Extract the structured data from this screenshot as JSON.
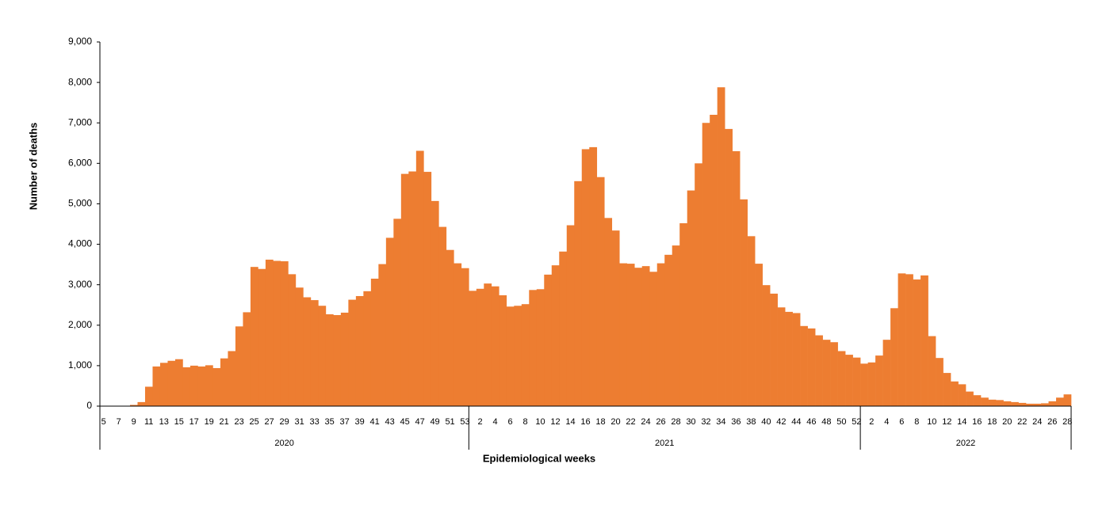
{
  "chart_data": {
    "type": "bar",
    "y_label": "Number of deaths",
    "x_label": "Epidemiological weeks",
    "color": "#ed7d31",
    "ylim": [
      0,
      9000
    ],
    "yticks": [
      0,
      {
        "value": 1000,
        "label": "1,000"
      },
      {
        "value": 2000,
        "label": "2,000"
      },
      {
        "value": 3000,
        "label": "3,000"
      },
      {
        "value": 4000,
        "label": "4,000"
      },
      {
        "value": 5000,
        "label": "5,000"
      },
      {
        "value": 6000,
        "label": "6,000"
      },
      {
        "value": 7000,
        "label": "7,000"
      },
      {
        "value": 8000,
        "label": "8,000"
      },
      {
        "value": 9000,
        "label": "9,000"
      }
    ],
    "groups": [
      {
        "name": "2020",
        "categories": [
          "5",
          null,
          "7",
          null,
          "9",
          null,
          "11",
          null,
          "13",
          null,
          "15",
          null,
          "17",
          null,
          "19",
          null,
          "21",
          null,
          "23",
          null,
          "25",
          null,
          "27",
          null,
          "29",
          null,
          "31",
          null,
          "33",
          null,
          "35",
          null,
          "37",
          null,
          "39",
          null,
          "41",
          null,
          "43",
          null,
          "45",
          null,
          "47",
          null,
          "49",
          null,
          "51",
          null,
          "53"
        ],
        "values": [
          0,
          0,
          0,
          0,
          30,
          100,
          480,
          980,
          1070,
          1120,
          1160,
          960,
          1000,
          980,
          1010,
          940,
          1180,
          1360,
          1970,
          2320,
          3440,
          3390,
          3620,
          3590,
          3580,
          3260,
          2930,
          2690,
          2620,
          2480,
          2270,
          2250,
          2310,
          2630,
          2720,
          2840,
          3150,
          3510,
          4160,
          4630,
          5740,
          5800,
          6310,
          5790,
          5070,
          4430,
          3860,
          3530,
          3410
        ]
      },
      {
        "name": "2021",
        "categories": [
          null,
          "2",
          null,
          "4",
          null,
          "6",
          null,
          "8",
          null,
          "10",
          null,
          "12",
          null,
          "14",
          null,
          "16",
          null,
          "18",
          null,
          "20",
          null,
          "22",
          null,
          "24",
          null,
          "26",
          null,
          "28",
          null,
          "30",
          null,
          "32",
          null,
          "34",
          null,
          "36",
          null,
          "38",
          null,
          "40",
          null,
          "42",
          null,
          "44",
          null,
          "46",
          null,
          "48",
          null,
          "50",
          null,
          "52"
        ],
        "values": [
          2850,
          2900,
          3030,
          2960,
          2740,
          2460,
          2480,
          2520,
          2870,
          2890,
          3250,
          3480,
          3820,
          4470,
          5560,
          6350,
          6400,
          5660,
          4650,
          4340,
          3530,
          3520,
          3420,
          3460,
          3320,
          3530,
          3740,
          3970,
          4520,
          5330,
          6000,
          7000,
          7200,
          7880,
          6850,
          6300,
          5110,
          4200,
          3520,
          2990,
          2780,
          2440,
          2330,
          2300,
          1980,
          1920,
          1750,
          1640,
          1580,
          1360,
          1270,
          1200
        ]
      },
      {
        "name": "2022",
        "categories": [
          null,
          "2",
          null,
          "4",
          null,
          "6",
          null,
          "8",
          null,
          "10",
          null,
          "12",
          null,
          "14",
          null,
          "16",
          null,
          "18",
          null,
          "20",
          null,
          "22",
          null,
          "24",
          null,
          "26",
          null,
          "28"
        ],
        "values": [
          1050,
          1080,
          1250,
          1640,
          2420,
          3280,
          3260,
          3130,
          3230,
          1730,
          1190,
          820,
          610,
          540,
          360,
          270,
          210,
          160,
          150,
          120,
          100,
          80,
          60,
          60,
          70,
          120,
          210,
          290
        ]
      }
    ]
  }
}
